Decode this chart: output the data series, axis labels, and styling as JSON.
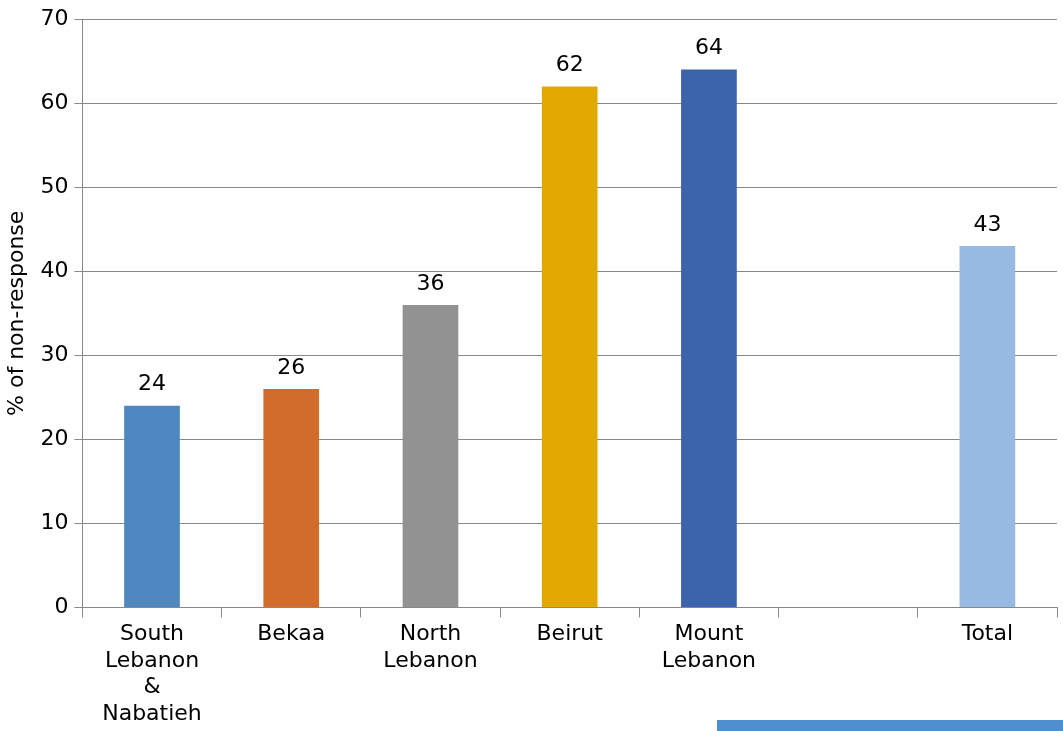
{
  "chart_data": {
    "type": "bar",
    "ylabel": "% of non-response",
    "categories": [
      "South Lebanon & Nabatieh",
      "Bekaa",
      "North Lebanon",
      "Beirut",
      "Mount Lebanon",
      null,
      "Total"
    ],
    "values": [
      24,
      26,
      36,
      62,
      64,
      null,
      43
    ],
    "colors": [
      "#4f88c0",
      "#d26c2c",
      "#929292",
      "#e1a800",
      "#3b64ad",
      "#cccccc",
      "#98b9e1"
    ],
    "ylim": [
      0,
      70
    ],
    "yticks": [
      0,
      10,
      20,
      30,
      40,
      50,
      60,
      70
    ],
    "grid": "y",
    "legend": false,
    "data_labels": true
  }
}
